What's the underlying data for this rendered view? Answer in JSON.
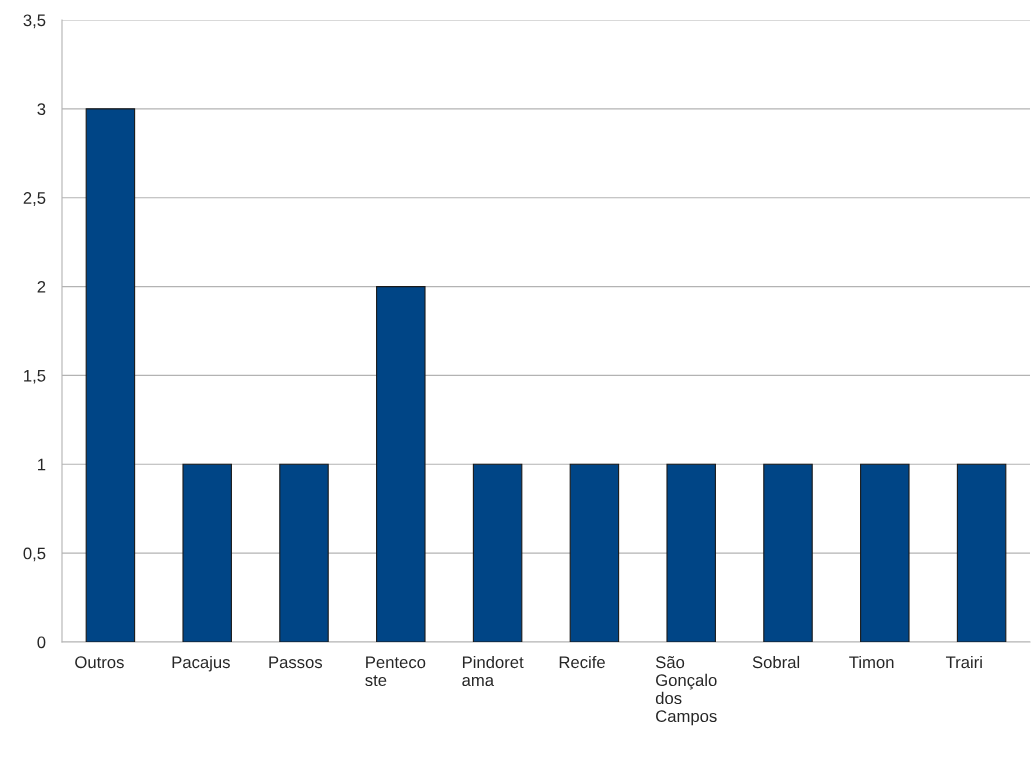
{
  "chart_data": {
    "type": "bar",
    "categories": [
      "Outros",
      "Pacajus",
      "Passos",
      "Penteco\nste",
      "Pindoret\nama",
      "Recife",
      "São\nGonçalo\ndos\nCampos",
      "Sobral",
      "Timon",
      "Trairi"
    ],
    "values": [
      3,
      1,
      1,
      2,
      1,
      1,
      1,
      1,
      1,
      1
    ],
    "color": "#004586",
    "ylim": [
      0,
      3.5
    ],
    "yticks": [
      {
        "value": 0,
        "label": "0"
      },
      {
        "value": 0.5,
        "label": "0,5"
      },
      {
        "value": 1,
        "label": "1"
      },
      {
        "value": 1.5,
        "label": "1,5"
      },
      {
        "value": 2,
        "label": "2"
      },
      {
        "value": 2.5,
        "label": "2,5"
      },
      {
        "value": 3,
        "label": "3"
      },
      {
        "value": 3.5,
        "label": "3,5"
      }
    ],
    "grid": "y",
    "legend": false
  }
}
